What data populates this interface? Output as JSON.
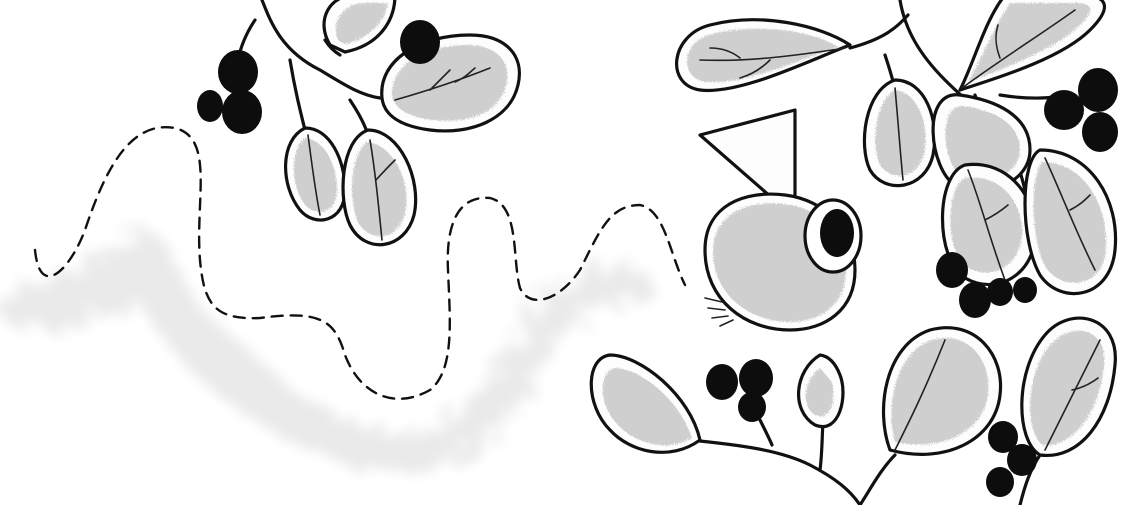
{
  "scene": {
    "background_color": "#ffffff",
    "ink_color": "#111111",
    "leaf_shade_color": "#cfcfcf",
    "berry_color": "#0d0d0d",
    "elements": [
      "leaves",
      "berries",
      "bird",
      "dashed-flight-path",
      "dust-cloud"
    ]
  }
}
